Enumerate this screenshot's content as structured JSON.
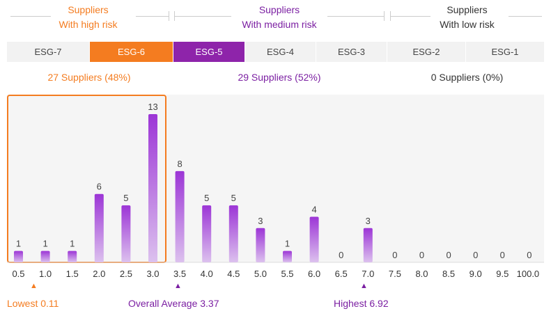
{
  "risk_groups": [
    {
      "line1": "Suppliers",
      "line2": "With high risk",
      "color": "#f47c20"
    },
    {
      "line1": "Suppliers",
      "line2": "With medium risk",
      "color": "#7b1fa2"
    },
    {
      "line1": "Suppliers",
      "line2": "With low risk",
      "color": "#333333"
    }
  ],
  "esg_levels": [
    {
      "label": "ESG-7",
      "state": "inactive"
    },
    {
      "label": "ESG-6",
      "state": "high"
    },
    {
      "label": "ESG-5",
      "state": "medium"
    },
    {
      "label": "ESG-4",
      "state": "inactive"
    },
    {
      "label": "ESG-3",
      "state": "inactive"
    },
    {
      "label": "ESG-2",
      "state": "inactive"
    },
    {
      "label": "ESG-1",
      "state": "inactive"
    }
  ],
  "counts": [
    {
      "text": "27 Suppliers (48%)",
      "color": "#f47c20"
    },
    {
      "text": "29 Suppliers (52%)",
      "color": "#7b1fa2"
    },
    {
      "text": "0 Suppliers (0%)",
      "color": "#333333"
    }
  ],
  "colors": {
    "high": "#f47c20",
    "medium": "#8e24aa",
    "bar_top": "#9c35d6",
    "bar_bottom": "#dcc1ee",
    "plot_bg": "#f5f5f5",
    "inactive_seg": "#f2f2f2"
  },
  "chart_data": {
    "type": "bar",
    "categories": [
      "0.5",
      "1.0",
      "1.5",
      "2.0",
      "2.5",
      "3.0",
      "3.5",
      "4.0",
      "4.5",
      "5.0",
      "5.5",
      "6.0",
      "6.5",
      "7.0",
      "7.5",
      "8.0",
      "8.5",
      "9.0",
      "9.5",
      "100.0"
    ],
    "values": [
      1,
      1,
      1,
      6,
      5,
      13,
      8,
      5,
      5,
      3,
      1,
      4,
      0,
      3,
      0,
      0,
      0,
      0,
      0,
      0
    ],
    "ylim": [
      0,
      13
    ],
    "grid": false,
    "highlight_range": [
      "0.5",
      "3.0"
    ]
  },
  "markers": [
    {
      "label": "Lowest 0.11",
      "color": "#f47c20"
    },
    {
      "label": "Overall Average 3.37",
      "color": "#7b1fa2"
    },
    {
      "label": "Highest 6.92",
      "color": "#7b1fa2"
    }
  ]
}
